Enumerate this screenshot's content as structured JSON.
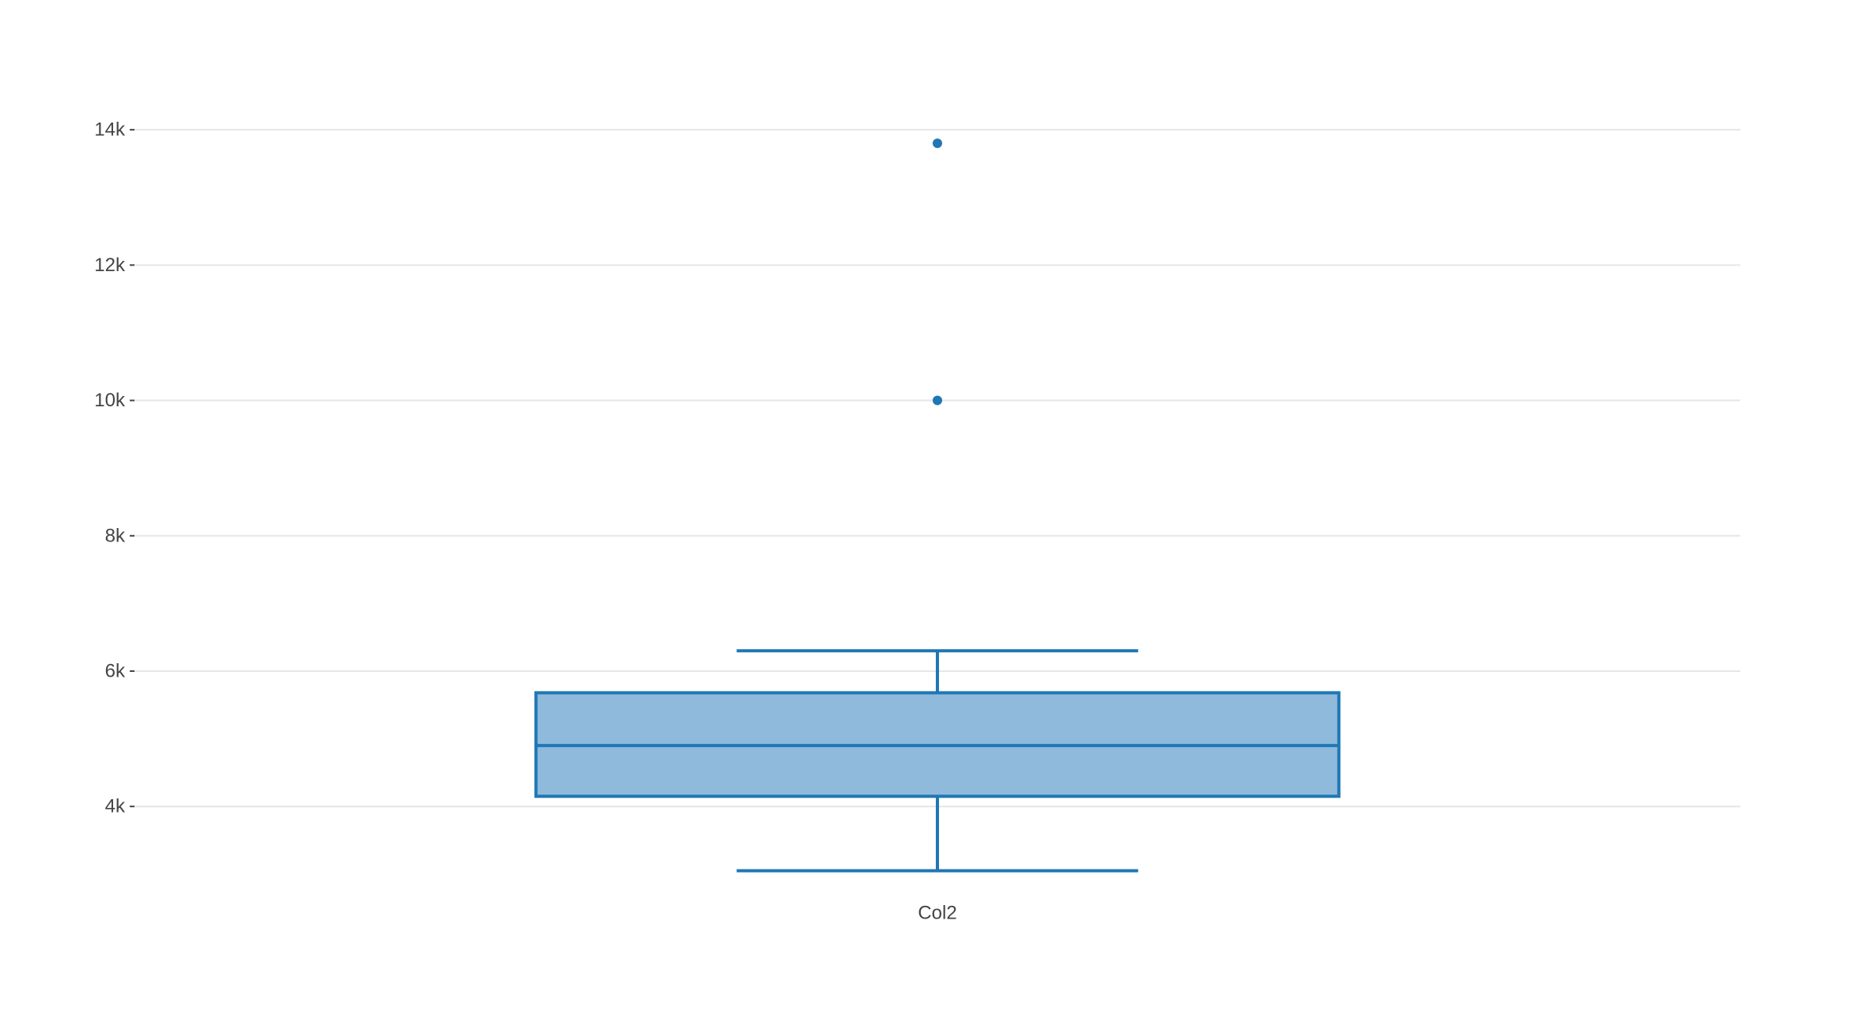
{
  "chart_data": {
    "type": "box",
    "categories": [
      "Col2"
    ],
    "series": [
      {
        "category": "Col2",
        "lower_whisker": 3050,
        "q1": 4150,
        "median": 4900,
        "q3": 5680,
        "upper_whisker": 6300,
        "outliers": [
          10000,
          13800
        ]
      }
    ],
    "y_ticks": [
      4000,
      6000,
      8000,
      10000,
      12000,
      14000
    ],
    "y_tick_labels": [
      "4k",
      "6k",
      "8k",
      "10k",
      "12k",
      "14k"
    ],
    "ylim": [
      2250,
      15450
    ],
    "grid": true,
    "colors": {
      "box_line": "#1f77b4",
      "box_fill": "#8fbadb",
      "grid": "#e6e6e6",
      "text": "#444444"
    }
  }
}
